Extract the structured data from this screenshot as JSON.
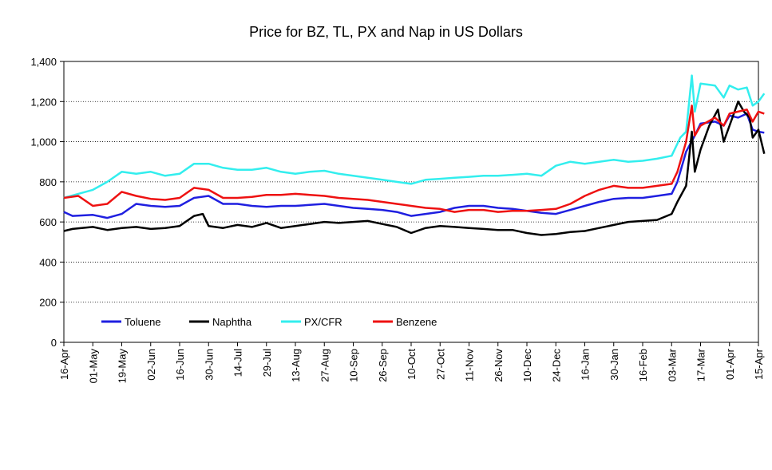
{
  "chart_data": {
    "type": "line",
    "title": "Price for BZ, TL, PX and Nap in US Dollars",
    "xlabel": "",
    "ylabel": "",
    "ylim": [
      0,
      1400
    ],
    "y_ticks": [
      "0",
      "200",
      "400",
      "600",
      "800",
      "1,000",
      "1,200",
      "1,400"
    ],
    "y_tick_values": [
      0,
      200,
      400,
      600,
      800,
      1000,
      1200,
      1400
    ],
    "x_ticks": [
      "16-Apr",
      "01-May",
      "19-May",
      "02-Jun",
      "16-Jun",
      "30-Jun",
      "14-Jul",
      "29-Jul",
      "13-Aug",
      "27-Aug",
      "10-Sep",
      "26-Sep",
      "10-Oct",
      "27-Oct",
      "11-Nov",
      "26-Nov",
      "10-Dec",
      "24-Dec",
      "16-Jan",
      "30-Jan",
      "16-Feb",
      "03-Mar",
      "17-Mar",
      "01-Apr",
      "15-Apr"
    ],
    "grid": "horizontal dotted",
    "legend": "bottom-left inside plot",
    "series": [
      {
        "name": "Toluene",
        "color": "#1f1fe0",
        "points": [
          [
            0,
            650
          ],
          [
            0.3,
            630
          ],
          [
            1,
            635
          ],
          [
            1.5,
            620
          ],
          [
            2,
            640
          ],
          [
            2.5,
            690
          ],
          [
            3,
            680
          ],
          [
            3.5,
            675
          ],
          [
            4,
            680
          ],
          [
            4.5,
            720
          ],
          [
            5,
            730
          ],
          [
            5.5,
            690
          ],
          [
            6,
            690
          ],
          [
            6.5,
            680
          ],
          [
            7,
            675
          ],
          [
            7.5,
            680
          ],
          [
            8,
            680
          ],
          [
            8.5,
            685
          ],
          [
            9,
            690
          ],
          [
            9.5,
            680
          ],
          [
            10,
            670
          ],
          [
            10.5,
            665
          ],
          [
            11,
            660
          ],
          [
            11.5,
            650
          ],
          [
            12,
            630
          ],
          [
            12.5,
            640
          ],
          [
            13,
            650
          ],
          [
            13.5,
            670
          ],
          [
            14,
            680
          ],
          [
            14.5,
            680
          ],
          [
            15,
            670
          ],
          [
            15.5,
            665
          ],
          [
            16,
            655
          ],
          [
            16.5,
            645
          ],
          [
            17,
            640
          ],
          [
            17.5,
            660
          ],
          [
            18,
            680
          ],
          [
            18.5,
            700
          ],
          [
            19,
            715
          ],
          [
            19.5,
            720
          ],
          [
            20,
            720
          ],
          [
            20.5,
            730
          ],
          [
            21,
            740
          ],
          [
            21.2,
            800
          ],
          [
            21.5,
            950
          ],
          [
            21.8,
            1030
          ],
          [
            22,
            1090
          ],
          [
            22.5,
            1100
          ],
          [
            22.8,
            1080
          ],
          [
            23,
            1130
          ],
          [
            23.3,
            1120
          ],
          [
            23.6,
            1140
          ],
          [
            23.8,
            1060
          ],
          [
            24,
            1050
          ],
          [
            24.2,
            1045
          ]
        ]
      },
      {
        "name": "Naphtha",
        "color": "#000000",
        "points": [
          [
            0,
            555
          ],
          [
            0.3,
            565
          ],
          [
            1,
            575
          ],
          [
            1.5,
            560
          ],
          [
            2,
            570
          ],
          [
            2.5,
            575
          ],
          [
            3,
            565
          ],
          [
            3.5,
            570
          ],
          [
            4,
            580
          ],
          [
            4.5,
            630
          ],
          [
            4.8,
            640
          ],
          [
            5,
            580
          ],
          [
            5.5,
            570
          ],
          [
            6,
            585
          ],
          [
            6.5,
            575
          ],
          [
            7,
            595
          ],
          [
            7.5,
            570
          ],
          [
            8,
            580
          ],
          [
            8.5,
            590
          ],
          [
            9,
            600
          ],
          [
            9.5,
            595
          ],
          [
            10,
            600
          ],
          [
            10.5,
            605
          ],
          [
            11,
            590
          ],
          [
            11.5,
            575
          ],
          [
            12,
            545
          ],
          [
            12.5,
            570
          ],
          [
            13,
            580
          ],
          [
            13.5,
            575
          ],
          [
            14,
            570
          ],
          [
            14.5,
            565
          ],
          [
            15,
            560
          ],
          [
            15.5,
            560
          ],
          [
            16,
            545
          ],
          [
            16.5,
            535
          ],
          [
            17,
            540
          ],
          [
            17.5,
            550
          ],
          [
            18,
            555
          ],
          [
            18.5,
            570
          ],
          [
            19,
            585
          ],
          [
            19.5,
            600
          ],
          [
            20,
            605
          ],
          [
            20.5,
            610
          ],
          [
            21,
            640
          ],
          [
            21.2,
            700
          ],
          [
            21.5,
            780
          ],
          [
            21.7,
            1050
          ],
          [
            21.8,
            850
          ],
          [
            22,
            960
          ],
          [
            22.3,
            1080
          ],
          [
            22.6,
            1160
          ],
          [
            22.8,
            1000
          ],
          [
            23,
            1080
          ],
          [
            23.3,
            1200
          ],
          [
            23.5,
            1150
          ],
          [
            23.7,
            1120
          ],
          [
            23.8,
            1020
          ],
          [
            24,
            1060
          ],
          [
            24.2,
            940
          ]
        ]
      },
      {
        "name": "PX/CFR",
        "color": "#33eeee",
        "points": [
          [
            0,
            720
          ],
          [
            0.5,
            740
          ],
          [
            1,
            760
          ],
          [
            1.5,
            800
          ],
          [
            2,
            850
          ],
          [
            2.5,
            840
          ],
          [
            3,
            850
          ],
          [
            3.5,
            830
          ],
          [
            4,
            840
          ],
          [
            4.5,
            890
          ],
          [
            5,
            890
          ],
          [
            5.5,
            870
          ],
          [
            6,
            860
          ],
          [
            6.5,
            860
          ],
          [
            7,
            870
          ],
          [
            7.5,
            850
          ],
          [
            8,
            840
          ],
          [
            8.5,
            850
          ],
          [
            9,
            855
          ],
          [
            9.5,
            840
          ],
          [
            10,
            830
          ],
          [
            10.5,
            820
          ],
          [
            11,
            810
          ],
          [
            11.5,
            800
          ],
          [
            12,
            790
          ],
          [
            12.5,
            810
          ],
          [
            13,
            815
          ],
          [
            13.5,
            820
          ],
          [
            14,
            825
          ],
          [
            14.5,
            830
          ],
          [
            15,
            830
          ],
          [
            15.5,
            835
          ],
          [
            16,
            840
          ],
          [
            16.5,
            830
          ],
          [
            17,
            880
          ],
          [
            17.5,
            900
          ],
          [
            18,
            890
          ],
          [
            18.5,
            900
          ],
          [
            19,
            910
          ],
          [
            19.5,
            900
          ],
          [
            20,
            905
          ],
          [
            20.5,
            915
          ],
          [
            21,
            930
          ],
          [
            21.3,
            1020
          ],
          [
            21.5,
            1050
          ],
          [
            21.7,
            1330
          ],
          [
            21.8,
            1150
          ],
          [
            22,
            1290
          ],
          [
            22.5,
            1280
          ],
          [
            22.8,
            1220
          ],
          [
            23,
            1280
          ],
          [
            23.3,
            1260
          ],
          [
            23.6,
            1270
          ],
          [
            23.8,
            1180
          ],
          [
            24,
            1200
          ],
          [
            24.2,
            1240
          ]
        ]
      },
      {
        "name": "Benzene",
        "color": "#ee1111",
        "points": [
          [
            0,
            720
          ],
          [
            0.5,
            730
          ],
          [
            1,
            680
          ],
          [
            1.5,
            690
          ],
          [
            2,
            750
          ],
          [
            2.5,
            730
          ],
          [
            3,
            715
          ],
          [
            3.5,
            710
          ],
          [
            4,
            720
          ],
          [
            4.5,
            770
          ],
          [
            5,
            760
          ],
          [
            5.5,
            720
          ],
          [
            6,
            720
          ],
          [
            6.5,
            725
          ],
          [
            7,
            735
          ],
          [
            7.5,
            735
          ],
          [
            8,
            740
          ],
          [
            8.5,
            735
          ],
          [
            9,
            730
          ],
          [
            9.5,
            720
          ],
          [
            10,
            715
          ],
          [
            10.5,
            710
          ],
          [
            11,
            700
          ],
          [
            11.5,
            690
          ],
          [
            12,
            680
          ],
          [
            12.5,
            670
          ],
          [
            13,
            665
          ],
          [
            13.5,
            650
          ],
          [
            14,
            660
          ],
          [
            14.5,
            660
          ],
          [
            15,
            650
          ],
          [
            15.5,
            655
          ],
          [
            16,
            655
          ],
          [
            16.5,
            660
          ],
          [
            17,
            665
          ],
          [
            17.5,
            690
          ],
          [
            18,
            730
          ],
          [
            18.5,
            760
          ],
          [
            19,
            780
          ],
          [
            19.5,
            770
          ],
          [
            20,
            770
          ],
          [
            20.5,
            780
          ],
          [
            21,
            790
          ],
          [
            21.2,
            850
          ],
          [
            21.5,
            1000
          ],
          [
            21.7,
            1180
          ],
          [
            21.8,
            1030
          ],
          [
            22,
            1080
          ],
          [
            22.5,
            1120
          ],
          [
            22.8,
            1080
          ],
          [
            23,
            1140
          ],
          [
            23.3,
            1150
          ],
          [
            23.6,
            1160
          ],
          [
            23.8,
            1100
          ],
          [
            24,
            1150
          ],
          [
            24.2,
            1140
          ]
        ]
      }
    ]
  }
}
